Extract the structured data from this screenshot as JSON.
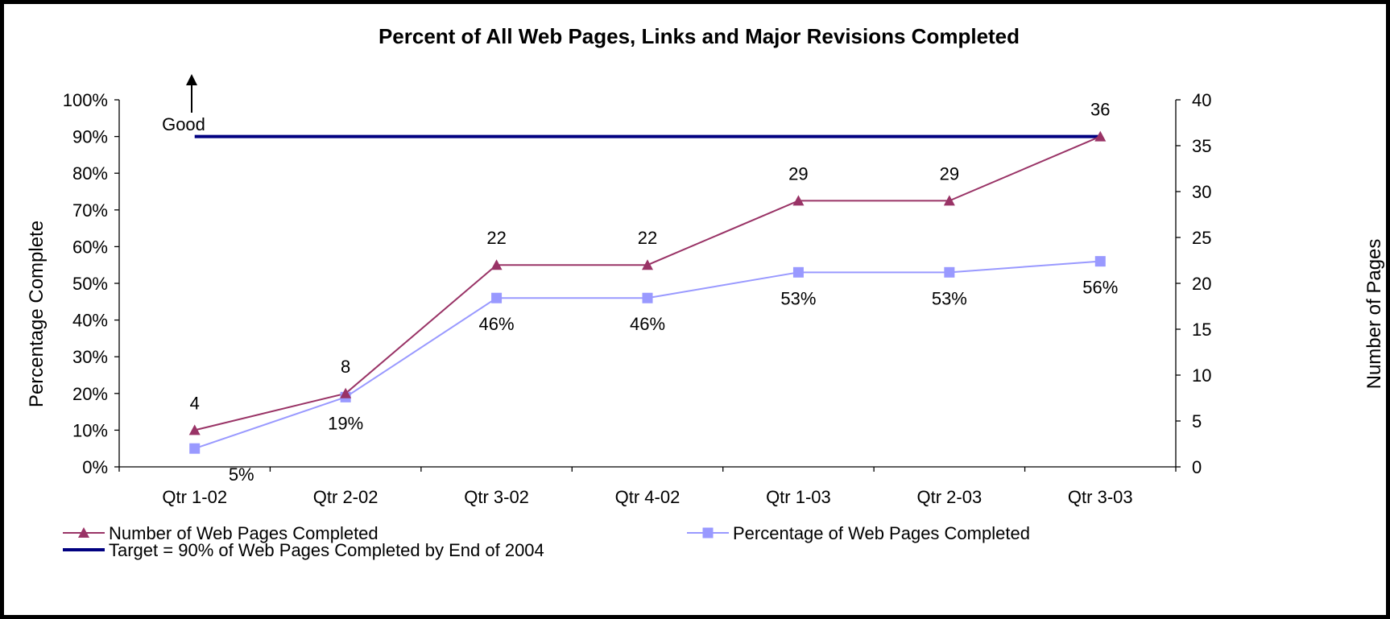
{
  "chart_data": {
    "type": "line",
    "title": "Percent of All Web Pages, Links and Major Revisions Completed",
    "categories": [
      "Qtr 1-02",
      "Qtr 2-02",
      "Qtr 3-02",
      "Qtr 4-02",
      "Qtr 1-03",
      "Qtr 2-03",
      "Qtr 3-03"
    ],
    "ylabel": "Percentage Complete",
    "y2label": "Number of Pages",
    "ylim": [
      0,
      100
    ],
    "y2lim": [
      0,
      40
    ],
    "yticks": [
      "0%",
      "10%",
      "20%",
      "30%",
      "40%",
      "50%",
      "60%",
      "70%",
      "80%",
      "90%",
      "100%"
    ],
    "y2ticks": [
      "0",
      "5",
      "10",
      "15",
      "20",
      "25",
      "30",
      "35",
      "40"
    ],
    "annotation": "Good",
    "series": [
      {
        "name": "Number of Web Pages Completed",
        "axis": "right",
        "marker": "triangle",
        "color": "#993366",
        "values": [
          4,
          8,
          22,
          22,
          29,
          29,
          36
        ],
        "labels": [
          "4",
          "8",
          "22",
          "22",
          "29",
          "29",
          "36"
        ]
      },
      {
        "name": "Percentage of Web Pages Completed",
        "axis": "left",
        "marker": "square",
        "color": "#9999ff",
        "values": [
          5,
          19,
          46,
          46,
          53,
          53,
          56
        ],
        "labels": [
          "5%",
          "19%",
          "46%",
          "46%",
          "53%",
          "53%",
          "56%"
        ]
      },
      {
        "name": "Target = 90% of Web Pages Completed by End of 2004",
        "axis": "left",
        "marker": "none",
        "color": "#000080",
        "values": [
          90,
          90,
          90,
          90,
          90,
          90,
          90
        ]
      }
    ],
    "grid": false,
    "legend_position": "bottom"
  }
}
